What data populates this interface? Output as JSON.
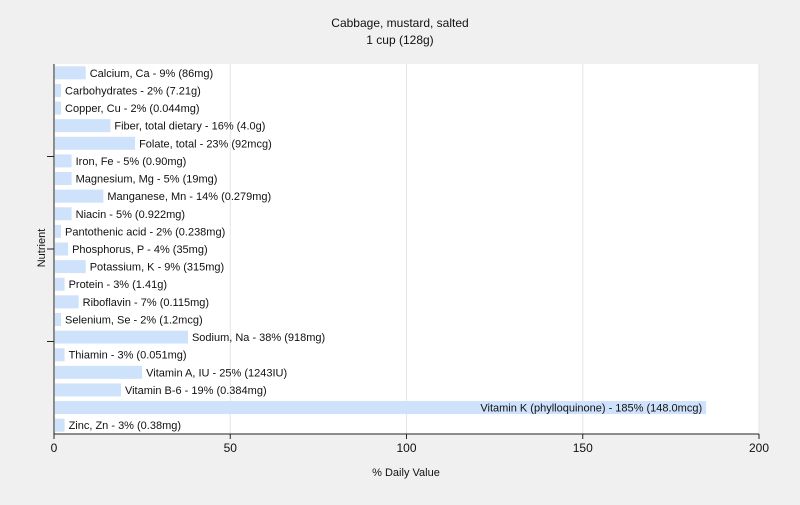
{
  "chart_data": {
    "type": "bar",
    "orientation": "horizontal",
    "title": "Cabbage, mustard, salted",
    "subtitle": "1 cup (128g)",
    "xlabel": "% Daily Value",
    "ylabel": "Nutrient",
    "xlim": [
      0,
      200
    ],
    "xticks": [
      0,
      50,
      100,
      150,
      200
    ],
    "grid": true,
    "bar_color": "#cfe2fb",
    "categories": [
      "Calcium, Ca",
      "Carbohydrates",
      "Copper, Cu",
      "Fiber, total dietary",
      "Folate, total",
      "Iron, Fe",
      "Magnesium, Mg",
      "Manganese, Mn",
      "Niacin",
      "Pantothenic acid",
      "Phosphorus, P",
      "Potassium, K",
      "Protein",
      "Riboflavin",
      "Selenium, Se",
      "Sodium, Na",
      "Thiamin",
      "Vitamin A, IU",
      "Vitamin B-6",
      "Vitamin K (phylloquinone)",
      "Zinc, Zn"
    ],
    "values": [
      9,
      2,
      2,
      16,
      23,
      5,
      5,
      14,
      5,
      2,
      4,
      9,
      3,
      7,
      2,
      38,
      3,
      25,
      19,
      185,
      3
    ],
    "labels": [
      "Calcium, Ca - 9% (86mg)",
      "Carbohydrates - 2% (7.21g)",
      "Copper, Cu - 2% (0.044mg)",
      "Fiber, total dietary - 16% (4.0g)",
      "Folate, total - 23% (92mcg)",
      "Iron, Fe - 5% (0.90mg)",
      "Magnesium, Mg - 5% (19mg)",
      "Manganese, Mn - 14% (0.279mg)",
      "Niacin - 5% (0.922mg)",
      "Pantothenic acid - 2% (0.238mg)",
      "Phosphorus, P - 4% (35mg)",
      "Potassium, K - 9% (315mg)",
      "Protein - 3% (1.41g)",
      "Riboflavin - 7% (0.115mg)",
      "Selenium, Se - 2% (1.2mcg)",
      "Sodium, Na - 38% (918mg)",
      "Thiamin - 3% (0.051mg)",
      "Vitamin A, IU - 25% (1243IU)",
      "Vitamin B-6 - 19% (0.384mg)",
      "Vitamin K (phylloquinone) - 185% (148.0mcg)",
      "Zinc, Zn - 3% (0.38mg)"
    ]
  }
}
